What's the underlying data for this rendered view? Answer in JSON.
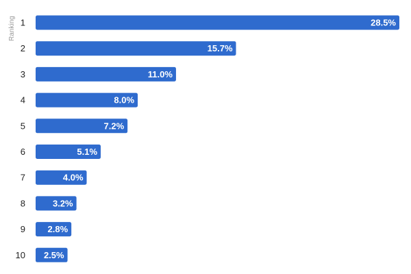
{
  "chart_data": {
    "type": "bar",
    "orientation": "horizontal",
    "ylabel": "Ranking",
    "categories": [
      "1",
      "2",
      "3",
      "4",
      "5",
      "6",
      "7",
      "8",
      "9",
      "10"
    ],
    "values": [
      28.5,
      15.7,
      11.0,
      8.0,
      7.2,
      5.1,
      4.0,
      3.2,
      2.8,
      2.5
    ],
    "value_labels": [
      "28.5%",
      "15.7%",
      "11.0%",
      "8.0%",
      "7.2%",
      "5.1%",
      "4.0%",
      "3.2%",
      "2.8%",
      "2.5%"
    ],
    "unit": "%",
    "xlim": [
      0,
      28.5
    ],
    "grid": false,
    "bar_color": "#2f6bce"
  }
}
